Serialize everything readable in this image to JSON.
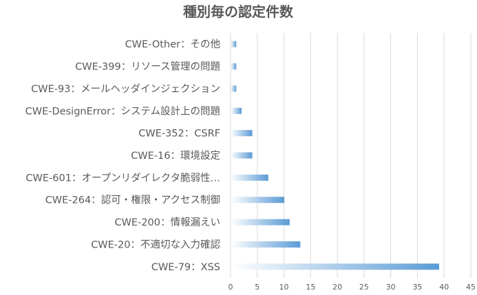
{
  "chart_data": {
    "type": "bar",
    "orientation": "horizontal",
    "title": "種別毎の認定件数",
    "xlabel": "",
    "ylabel": "",
    "xlim": [
      0,
      45
    ],
    "x_ticks": [
      "0",
      "5",
      "10",
      "15",
      "20",
      "25",
      "30",
      "35",
      "40",
      "45"
    ],
    "grid": true,
    "legend": "none",
    "bar_color": "#5b9bd5",
    "categories": [
      "CWE-Other：その他",
      "CWE-399：リソース管理の問題",
      "CWE-93：メールヘッダインジェクション",
      "CWE-DesignError：システム設計上の問題",
      "CWE-352：CSRF",
      "CWE-16：環境設定",
      "CWE-601：オープンリダイレクタ脆弱性…",
      "CWE-264：認可・権限・アクセス制御",
      "CWE-200：情報漏えい",
      "CWE-20：不適切な入力確認",
      "CWE-79：XSS"
    ],
    "values": [
      1,
      1,
      1,
      2,
      4,
      4,
      7,
      10,
      11,
      13,
      39
    ]
  }
}
